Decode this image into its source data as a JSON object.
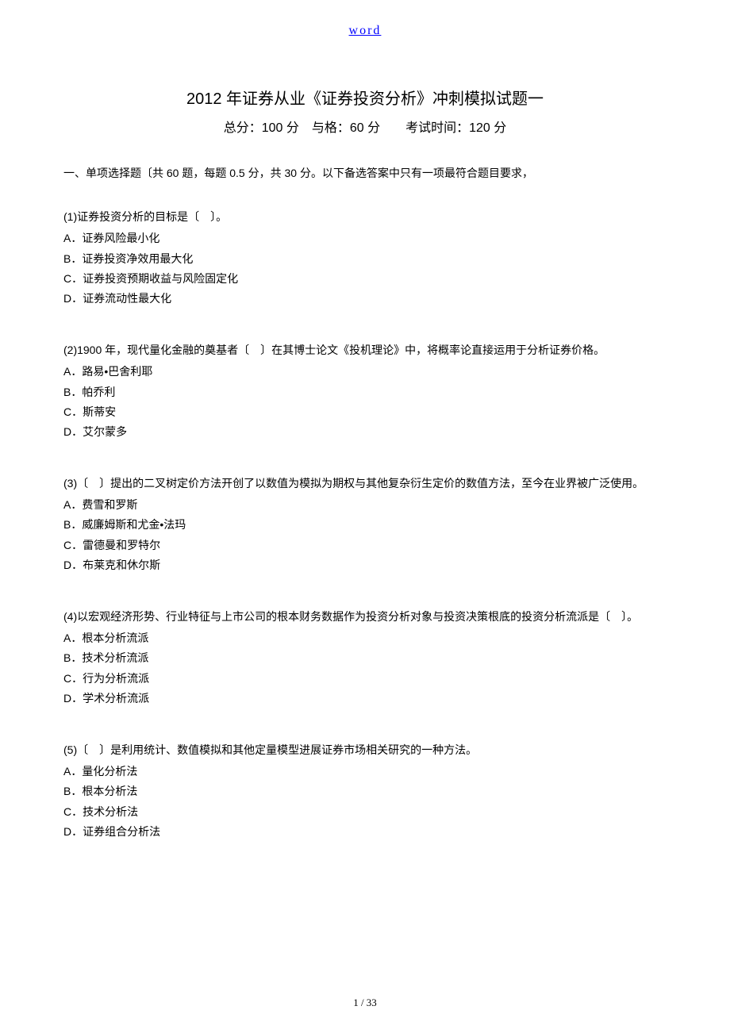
{
  "header": {
    "word_label": "word"
  },
  "title": "2012 年证券从业《证券投资分析》冲刺模拟试题一",
  "subtitle": "总分：100 分　与格：60 分　　考试时间：120 分",
  "section_header": "一、单项选择题〔共 60 题，每题 0.5 分，共 30 分。以下备选答案中只有一项最符合题目要求，",
  "questions": [
    {
      "text": "(1)证券投资分析的目标是〔　〕。",
      "options": {
        "A": "A．证券风险最小化",
        "B": "B．证券投资净效用最大化",
        "C": "C．证券投资预期收益与风险固定化",
        "D": "D．证券流动性最大化"
      }
    },
    {
      "text": "(2)1900 年，现代量化金融的奠基者〔　〕在其博士论文《投机理论》中，将概率论直接运用于分析证券价格。",
      "options": {
        "A": "A．路易•巴舍利耶",
        "B": "B．帕乔利",
        "C": "C．斯蒂安",
        "D": "D．艾尔蒙多"
      }
    },
    {
      "text": "(3)〔　〕提出的二叉树定价方法开创了以数值为模拟为期权与其他复杂衍生定价的数值方法，至今在业界被广泛使用。",
      "options": {
        "A": "A．费雪和罗斯",
        "B": "B．威廉姆斯和尤金•法玛",
        "C": "C．雷德曼和罗特尔",
        "D": "D．布莱克和休尔斯"
      }
    },
    {
      "text": "(4)以宏观经济形势、行业特征与上市公司的根本财务数据作为投资分析对象与投资决策根底的投资分析流派是〔　〕。",
      "options": {
        "A": "A．根本分析流派",
        "B": "B．技术分析流派",
        "C": "C．行为分析流派",
        "D": "D．学术分析流派"
      }
    },
    {
      "text": "(5)〔　〕是利用统计、数值模拟和其他定量模型进展证券市场相关研究的一种方法。",
      "options": {
        "A": "A．量化分析法",
        "B": "B．根本分析法",
        "C": "C．技术分析法",
        "D": "D．证券组合分析法"
      }
    }
  ],
  "footer": {
    "page_number": "1 / 33"
  }
}
